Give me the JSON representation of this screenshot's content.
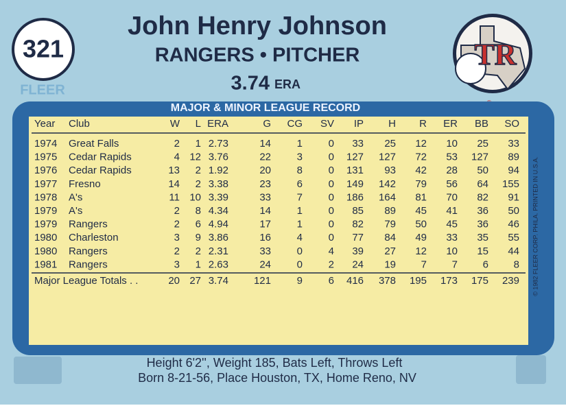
{
  "header": {
    "number": "321",
    "name": "John Henry Johnson",
    "team_position": "RANGERS • PITCHER",
    "era_value": "3.74",
    "era_label": "ERA",
    "brand": "FLEER",
    "logo": "TR",
    "logo_mark": "®"
  },
  "table": {
    "title": "MAJOR & MINOR LEAGUE RECORD",
    "columns": [
      "Year",
      "Club",
      "W",
      "L",
      "ERA",
      "G",
      "CG",
      "SV",
      "IP",
      "H",
      "R",
      "ER",
      "BB",
      "SO"
    ],
    "rows": [
      [
        "1974",
        "Great Falls",
        "2",
        "1",
        "2.73",
        "14",
        "1",
        "0",
        "33",
        "25",
        "12",
        "10",
        "25",
        "33"
      ],
      [
        "1975",
        "Cedar Rapids",
        "4",
        "12",
        "3.76",
        "22",
        "3",
        "0",
        "127",
        "127",
        "72",
        "53",
        "127",
        "89"
      ],
      [
        "1976",
        "Cedar Rapids",
        "13",
        "2",
        "1.92",
        "20",
        "8",
        "0",
        "131",
        "93",
        "42",
        "28",
        "50",
        "94"
      ],
      [
        "1977",
        "Fresno",
        "14",
        "2",
        "3.38",
        "23",
        "6",
        "0",
        "149",
        "142",
        "79",
        "56",
        "64",
        "155"
      ],
      [
        "1978",
        "A's",
        "11",
        "10",
        "3.39",
        "33",
        "7",
        "0",
        "186",
        "164",
        "81",
        "70",
        "82",
        "91"
      ],
      [
        "1979",
        "A's",
        "2",
        "8",
        "4.34",
        "14",
        "1",
        "0",
        "85",
        "89",
        "45",
        "41",
        "36",
        "50"
      ],
      [
        "1979",
        "Rangers",
        "2",
        "6",
        "4.94",
        "17",
        "1",
        "0",
        "82",
        "79",
        "50",
        "45",
        "36",
        "46"
      ],
      [
        "1980",
        "Charleston",
        "3",
        "9",
        "3.86",
        "16",
        "4",
        "0",
        "77",
        "84",
        "49",
        "33",
        "35",
        "55"
      ],
      [
        "1980",
        "Rangers",
        "2",
        "2",
        "2.31",
        "33",
        "0",
        "4",
        "39",
        "27",
        "12",
        "10",
        "15",
        "44"
      ],
      [
        "1981",
        "Rangers",
        "3",
        "1",
        "2.63",
        "24",
        "0",
        "2",
        "24",
        "19",
        "7",
        "7",
        "6",
        "8"
      ]
    ],
    "totals": [
      "Major League Totals . .",
      "20",
      "27",
      "3.74",
      "121",
      "9",
      "6",
      "416",
      "378",
      "195",
      "173",
      "175",
      "239"
    ]
  },
  "side_note": "© 1982 FLEER CORP. PHILA. PRINTED IN U.S.A.",
  "bio": [
    "Height 6'2'', Weight 185, Bats Left, Throws Left",
    "Born 8-21-56, Place Houston, TX, Home Reno, NV"
  ]
}
